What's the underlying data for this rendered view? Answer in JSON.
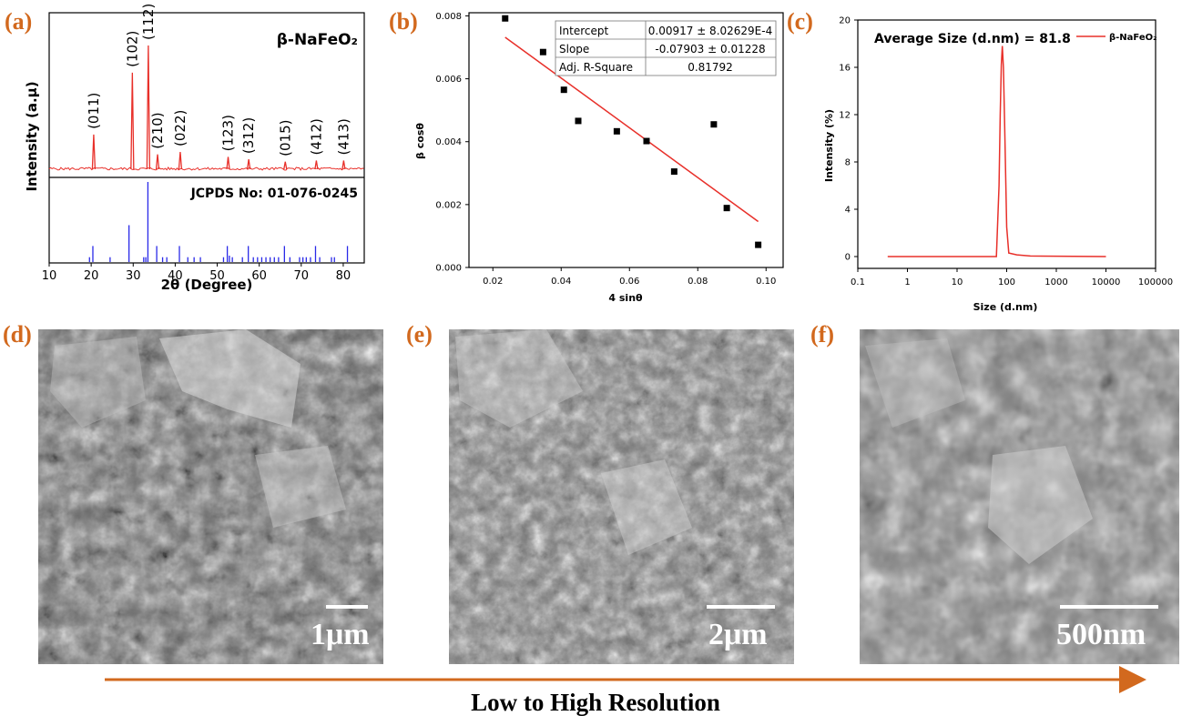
{
  "panel_labels": [
    "(a)",
    "(b)",
    "(c)",
    "(d)",
    "(e)",
    "(f)"
  ],
  "colors": {
    "accent": "#d2691e",
    "red": "#e8302a",
    "blue": "#2a2ae8",
    "black": "#000000"
  },
  "chart_data": [
    {
      "type": "line",
      "title": "β-NaFeO₂",
      "xlabel": "2θ (Degree)",
      "ylabel": "Intensity (a.μ)",
      "xlim": [
        10,
        85
      ],
      "xticks": [
        10,
        20,
        30,
        40,
        50,
        60,
        70,
        80
      ],
      "reference_label": "JCPDS No: 01-076-0245",
      "peaks": [
        {
          "label": "(011)",
          "x": 20.6,
          "y": 0.28
        },
        {
          "label": "(102)",
          "x": 29.8,
          "y": 0.78
        },
        {
          "label": "(112)",
          "x": 33.6,
          "y": 1.0
        },
        {
          "label": "(210)",
          "x": 35.8,
          "y": 0.12
        },
        {
          "label": "(022)",
          "x": 41.2,
          "y": 0.14
        },
        {
          "label": "(123)",
          "x": 52.6,
          "y": 0.1
        },
        {
          "label": "(312)",
          "x": 57.5,
          "y": 0.08
        },
        {
          "label": "(015)",
          "x": 66.2,
          "y": 0.06
        },
        {
          "label": "(412)",
          "x": 73.6,
          "y": 0.07
        },
        {
          "label": "(413)",
          "x": 80.1,
          "y": 0.07
        }
      ],
      "reference_lines": [
        {
          "x": 19.6,
          "h": 0.06
        },
        {
          "x": 20.4,
          "h": 0.2
        },
        {
          "x": 24.5,
          "h": 0.06
        },
        {
          "x": 29.0,
          "h": 0.46
        },
        {
          "x": 32.5,
          "h": 0.06
        },
        {
          "x": 33.0,
          "h": 0.06
        },
        {
          "x": 33.5,
          "h": 1.0
        },
        {
          "x": 35.6,
          "h": 0.2
        },
        {
          "x": 37.0,
          "h": 0.06
        },
        {
          "x": 38.0,
          "h": 0.06
        },
        {
          "x": 41.0,
          "h": 0.2
        },
        {
          "x": 43.0,
          "h": 0.06
        },
        {
          "x": 44.5,
          "h": 0.06
        },
        {
          "x": 46.0,
          "h": 0.06
        },
        {
          "x": 51.5,
          "h": 0.06
        },
        {
          "x": 52.4,
          "h": 0.2
        },
        {
          "x": 52.9,
          "h": 0.08
        },
        {
          "x": 53.6,
          "h": 0.06
        },
        {
          "x": 56.0,
          "h": 0.06
        },
        {
          "x": 57.4,
          "h": 0.2
        },
        {
          "x": 58.6,
          "h": 0.06
        },
        {
          "x": 59.6,
          "h": 0.06
        },
        {
          "x": 60.6,
          "h": 0.06
        },
        {
          "x": 61.6,
          "h": 0.06
        },
        {
          "x": 62.6,
          "h": 0.06
        },
        {
          "x": 63.6,
          "h": 0.06
        },
        {
          "x": 64.6,
          "h": 0.06
        },
        {
          "x": 66.0,
          "h": 0.2
        },
        {
          "x": 67.3,
          "h": 0.06
        },
        {
          "x": 69.6,
          "h": 0.06
        },
        {
          "x": 70.4,
          "h": 0.06
        },
        {
          "x": 71.2,
          "h": 0.06
        },
        {
          "x": 72.2,
          "h": 0.06
        },
        {
          "x": 73.4,
          "h": 0.2
        },
        {
          "x": 74.4,
          "h": 0.06
        },
        {
          "x": 77.2,
          "h": 0.06
        },
        {
          "x": 77.9,
          "h": 0.06
        },
        {
          "x": 81.0,
          "h": 0.2
        }
      ]
    },
    {
      "type": "scatter",
      "xlabel": "4 sinθ",
      "ylabel": "β cosθ",
      "xlim": [
        0.013,
        0.105
      ],
      "ylim": [
        0.0,
        0.0081
      ],
      "xticks": [
        0.02,
        0.04,
        0.06,
        0.08,
        0.1
      ],
      "xtick_labels": [
        "0.02",
        "0.04",
        "0.06",
        "0.08",
        "0.10"
      ],
      "yticks": [
        0.0,
        0.002,
        0.004,
        0.006,
        0.008
      ],
      "ytick_labels": [
        "0.000",
        "0.002",
        "0.004",
        "0.006",
        "0.008"
      ],
      "points": [
        {
          "x": 0.0236,
          "y": 0.00792
        },
        {
          "x": 0.0347,
          "y": 0.00685
        },
        {
          "x": 0.0408,
          "y": 0.00565
        },
        {
          "x": 0.045,
          "y": 0.00466
        },
        {
          "x": 0.0563,
          "y": 0.00433
        },
        {
          "x": 0.065,
          "y": 0.00402
        },
        {
          "x": 0.0731,
          "y": 0.00305
        },
        {
          "x": 0.0847,
          "y": 0.00455
        },
        {
          "x": 0.0885,
          "y": 0.00189
        },
        {
          "x": 0.0977,
          "y": 0.00072
        }
      ],
      "fit": {
        "x": [
          0.0236,
          0.0977
        ],
        "y": [
          0.00732,
          0.00146
        ]
      },
      "fit_table": [
        {
          "label": "Intercept",
          "value": "0.00917 ± 8.02629E-4"
        },
        {
          "label": "Slope",
          "value": "-0.07903 ± 0.01228"
        },
        {
          "label": "Adj. R-Square",
          "value": "0.81792"
        }
      ]
    },
    {
      "type": "line",
      "xlabel": "Size (d.nm)",
      "ylabel": "Intensity (%)",
      "xscale": "log",
      "xlim": [
        0.1,
        100000
      ],
      "ylim": [
        -1,
        20
      ],
      "xticks": [
        0.1,
        1,
        10,
        100,
        1000,
        10000,
        100000
      ],
      "xtick_labels": [
        "0.1",
        "1",
        "10",
        "100",
        "1000",
        "10000",
        "100000"
      ],
      "yticks": [
        0,
        4,
        8,
        12,
        16,
        20
      ],
      "annotation": "Average Size (d.nm) = 81.8",
      "series": [
        {
          "name": "β-NaFeO₂",
          "x": [
            0.4,
            10,
            50,
            62,
            70,
            74,
            78,
            81.8,
            86,
            91,
            100,
            110,
            160,
            300,
            10000
          ],
          "y": [
            0,
            0,
            0,
            0,
            6,
            12,
            16.2,
            17.8,
            16,
            11,
            2.5,
            0.3,
            0.15,
            0.05,
            0
          ]
        }
      ]
    }
  ],
  "sem_images": [
    {
      "scale_label": "1μm"
    },
    {
      "scale_label": "2μm"
    },
    {
      "scale_label": "500nm"
    }
  ],
  "caption": "Low to High Resolution"
}
